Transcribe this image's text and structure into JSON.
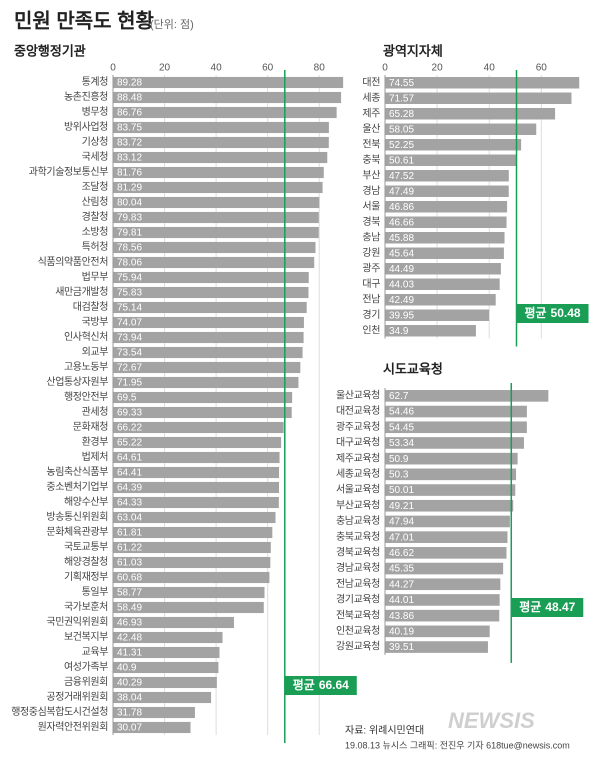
{
  "header": {
    "title": "민원 만족도 현황",
    "subtitle": "(단위: 점)"
  },
  "footer": {
    "source": "자료: 위례시민연대",
    "credit": "19.08.13 뉴시스 그래픽: 전진우 기자 618tue@newsis.com",
    "logo": "NEWSIS"
  },
  "chart_data": [
    {
      "type": "bar",
      "orientation": "horizontal",
      "title": "중앙행정기관",
      "categories": [
        "통계청",
        "농촌진흥청",
        "병무청",
        "방위사업청",
        "기상청",
        "국세청",
        "과학기술정보통신부",
        "조달청",
        "산림청",
        "경찰청",
        "소방청",
        "특허청",
        "식품의약품안전처",
        "법무부",
        "새만금개발청",
        "대검찰청",
        "국방부",
        "인사혁신처",
        "외교부",
        "고용노동부",
        "산업통상자원부",
        "행정안전부",
        "관세청",
        "문화재청",
        "환경부",
        "법제처",
        "농림축산식품부",
        "중소벤처기업부",
        "해양수산부",
        "방송통신위원회",
        "문화체육관광부",
        "국토교통부",
        "해양경찰청",
        "기획재정부",
        "통일부",
        "국가보훈처",
        "국민권익위원회",
        "보건복지부",
        "교육부",
        "여성가족부",
        "금융위원회",
        "공정거래위원회",
        "행정중심복합도시건설청",
        "원자력안전위원회"
      ],
      "values": [
        89.28,
        88.48,
        86.76,
        83.75,
        83.72,
        83.12,
        81.76,
        81.29,
        80.04,
        79.83,
        79.81,
        78.56,
        78.06,
        75.94,
        75.83,
        75.14,
        74.07,
        73.94,
        73.54,
        72.67,
        71.95,
        69.5,
        69.33,
        66.22,
        65.22,
        64.61,
        64.41,
        64.39,
        64.33,
        63.04,
        61.81,
        61.22,
        61.03,
        60.68,
        58.77,
        58.49,
        46.93,
        42.48,
        41.31,
        40.9,
        40.29,
        38.04,
        31.78,
        30.07
      ],
      "color": "#a3a3a3",
      "xlim": [
        0,
        90
      ],
      "xticks": [
        0,
        20,
        40,
        60,
        80
      ],
      "grid": true,
      "average": 66.64,
      "average_label": "평균",
      "average_color": "#1a9e55"
    },
    {
      "type": "bar",
      "orientation": "horizontal",
      "title": "광역지자체",
      "categories": [
        "대전",
        "세종",
        "제주",
        "울산",
        "전북",
        "충북",
        "부산",
        "경남",
        "서울",
        "경북",
        "충남",
        "강원",
        "광주",
        "대구",
        "전남",
        "경기",
        "인천"
      ],
      "values": [
        74.55,
        71.57,
        65.28,
        58.05,
        52.25,
        50.61,
        47.52,
        47.49,
        46.86,
        46.66,
        45.88,
        45.64,
        44.49,
        44.03,
        42.49,
        39.95,
        34.9
      ],
      "color": "#a3a3a3",
      "xlim": [
        0,
        76
      ],
      "xticks": [
        0,
        20,
        40,
        60
      ],
      "grid": true,
      "average": 50.48,
      "average_label": "평균",
      "average_color": "#1a9e55"
    },
    {
      "type": "bar",
      "orientation": "horizontal",
      "title": "시도교육청",
      "categories": [
        "울산교육청",
        "대전교육청",
        "광주교육청",
        "대구교육청",
        "제주교육청",
        "세종교육청",
        "서울교육청",
        "부산교육청",
        "충남교육청",
        "충북교육청",
        "경북교육청",
        "경남교육청",
        "전남교육청",
        "경기교육청",
        "전북교육청",
        "인천교육청",
        "강원교육청"
      ],
      "values": [
        62.7,
        54.46,
        54.45,
        53.34,
        50.9,
        50.3,
        50.01,
        49.21,
        47.94,
        47.01,
        46.62,
        45.35,
        44.27,
        44.01,
        43.86,
        40.19,
        39.51
      ],
      "color": "#a3a3a3",
      "xlim": [
        0,
        76
      ],
      "average": 48.47,
      "average_label": "평균",
      "average_color": "#1a9e55"
    }
  ]
}
